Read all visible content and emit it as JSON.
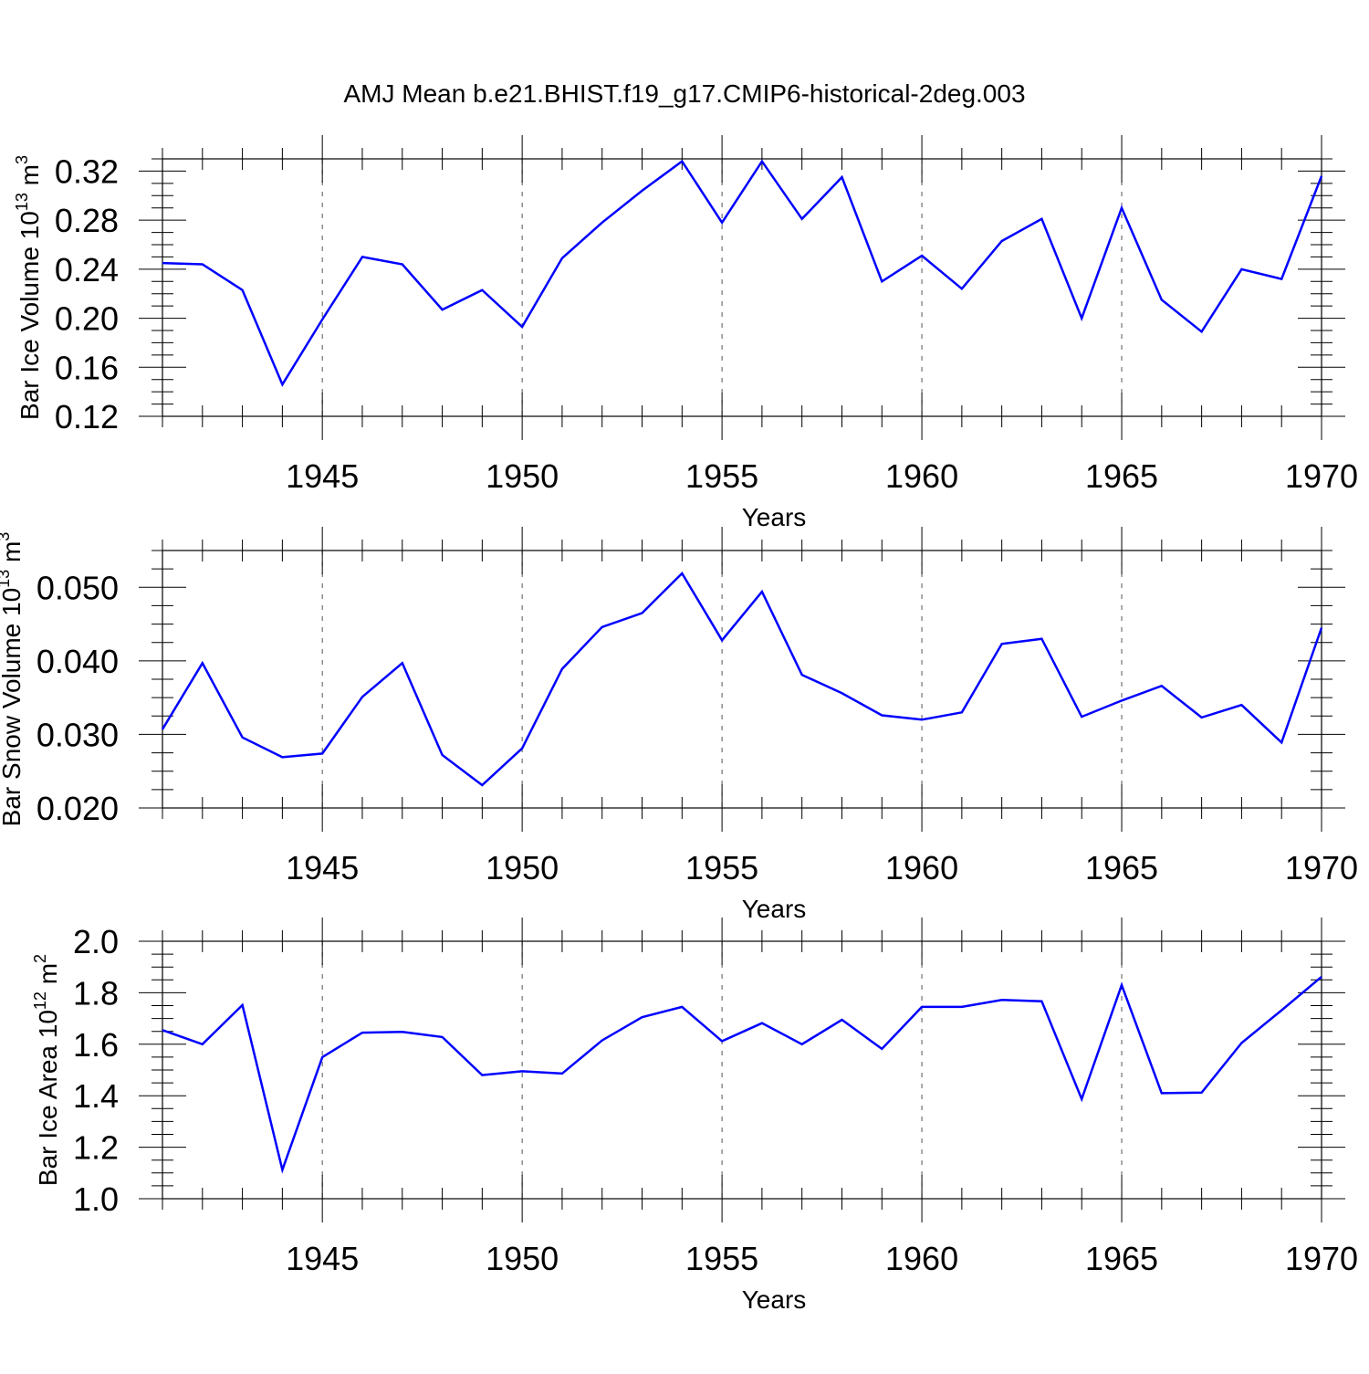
{
  "title": "AMJ Mean b.e21.BHIST.f19_g17.CMIP6-historical-2deg.003",
  "colors": {
    "line": "#0000ff",
    "axis": "#000000",
    "grid": "#555555"
  },
  "chart_data": [
    {
      "type": "line",
      "xlabel": "Years",
      "ylabel": {
        "main": "Bar Ice Volume 10",
        "exp": "13",
        "unit": " m",
        "unit_exp": "3"
      },
      "xlim": [
        1941,
        1970
      ],
      "ylim": [
        0.12,
        0.33
      ],
      "x_ticks": [
        1945,
        1950,
        1955,
        1960,
        1965,
        1970
      ],
      "y_ticks": [
        "0.12",
        "0.16",
        "0.20",
        "0.24",
        "0.28",
        "0.32"
      ],
      "grid": "vertical dashed at major x ticks",
      "x": [
        1941,
        1942,
        1943,
        1944,
        1945,
        1946,
        1947,
        1948,
        1949,
        1950,
        1951,
        1952,
        1953,
        1954,
        1955,
        1956,
        1957,
        1958,
        1959,
        1960,
        1961,
        1962,
        1963,
        1964,
        1965,
        1966,
        1967,
        1968,
        1969,
        1970
      ],
      "values": [
        0.245,
        0.244,
        0.223,
        0.146,
        0.199,
        0.25,
        0.244,
        0.207,
        0.223,
        0.193,
        0.249,
        0.278,
        0.304,
        0.328,
        0.278,
        0.328,
        0.281,
        0.315,
        0.23,
        0.251,
        0.224,
        0.263,
        0.281,
        0.2,
        0.29,
        0.215,
        0.189,
        0.24,
        0.232,
        0.316
      ]
    },
    {
      "type": "line",
      "xlabel": "Years",
      "ylabel": {
        "main": "Bar Snow Volume 10",
        "exp": "13",
        "unit": " m",
        "unit_exp": "3"
      },
      "xlim": [
        1941,
        1970
      ],
      "ylim": [
        0.02,
        0.055
      ],
      "x_ticks": [
        1945,
        1950,
        1955,
        1960,
        1965,
        1970
      ],
      "y_ticks": [
        "0.020",
        "0.030",
        "0.040",
        "0.050"
      ],
      "grid": "vertical dashed at major x ticks",
      "x": [
        1941,
        1942,
        1943,
        1944,
        1945,
        1946,
        1947,
        1948,
        1949,
        1950,
        1951,
        1952,
        1953,
        1954,
        1955,
        1956,
        1957,
        1958,
        1959,
        1960,
        1961,
        1962,
        1963,
        1964,
        1965,
        1966,
        1967,
        1968,
        1969,
        1970
      ],
      "values": [
        0.0307,
        0.0397,
        0.0296,
        0.0269,
        0.0274,
        0.0351,
        0.0397,
        0.0272,
        0.0231,
        0.0281,
        0.0389,
        0.0446,
        0.0465,
        0.0519,
        0.0428,
        0.0494,
        0.0381,
        0.0356,
        0.0326,
        0.032,
        0.033,
        0.0423,
        0.043,
        0.0324,
        0.0346,
        0.0366,
        0.0323,
        0.034,
        0.0289,
        0.0445
      ]
    },
    {
      "type": "line",
      "xlabel": "Years",
      "ylabel": {
        "main": "Bar Ice Area 10",
        "exp": "12",
        "unit": " m",
        "unit_exp": "2"
      },
      "xlim": [
        1941,
        1970
      ],
      "ylim": [
        1.0,
        2.0
      ],
      "x_ticks": [
        1945,
        1950,
        1955,
        1960,
        1965,
        1970
      ],
      "y_ticks": [
        "1.0",
        "1.2",
        "1.4",
        "1.6",
        "1.8",
        "2.0"
      ],
      "grid": "vertical dashed at major x ticks",
      "x": [
        1941,
        1942,
        1943,
        1944,
        1945,
        1946,
        1947,
        1948,
        1949,
        1950,
        1951,
        1952,
        1953,
        1954,
        1955,
        1956,
        1957,
        1958,
        1959,
        1960,
        1961,
        1962,
        1963,
        1964,
        1965,
        1966,
        1967,
        1968,
        1969,
        1970
      ],
      "values": [
        1.655,
        1.6,
        1.752,
        1.112,
        1.55,
        1.645,
        1.648,
        1.628,
        1.48,
        1.495,
        1.486,
        1.615,
        1.705,
        1.745,
        1.612,
        1.682,
        1.6,
        1.695,
        1.582,
        1.745,
        1.745,
        1.772,
        1.767,
        1.387,
        1.83,
        1.41,
        1.412,
        1.605,
        1.732,
        1.862
      ]
    }
  ]
}
